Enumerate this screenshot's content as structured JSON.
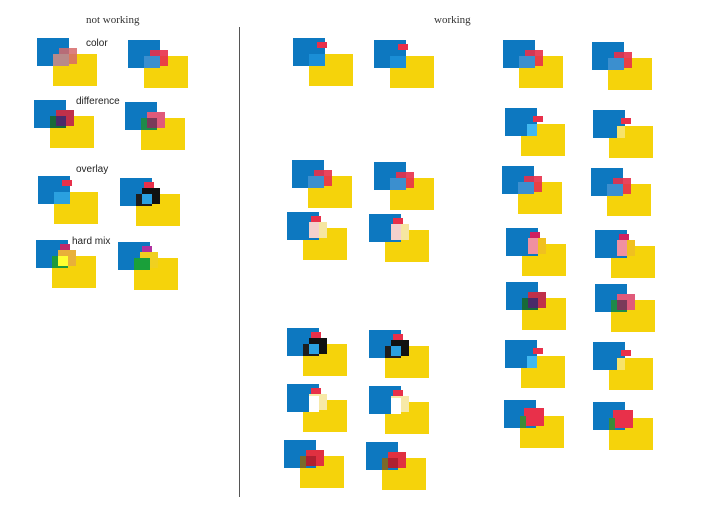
{
  "headings": {
    "not_working": "not working",
    "working": "working"
  },
  "labels": {
    "color": "color",
    "difference": "difference",
    "overlay": "overlay",
    "hard_mix": "hard mix"
  },
  "colors": {
    "blue": "#0d78c0",
    "yellow": "#f5d30b",
    "red": "#e8304a",
    "divider": "#555555"
  }
}
